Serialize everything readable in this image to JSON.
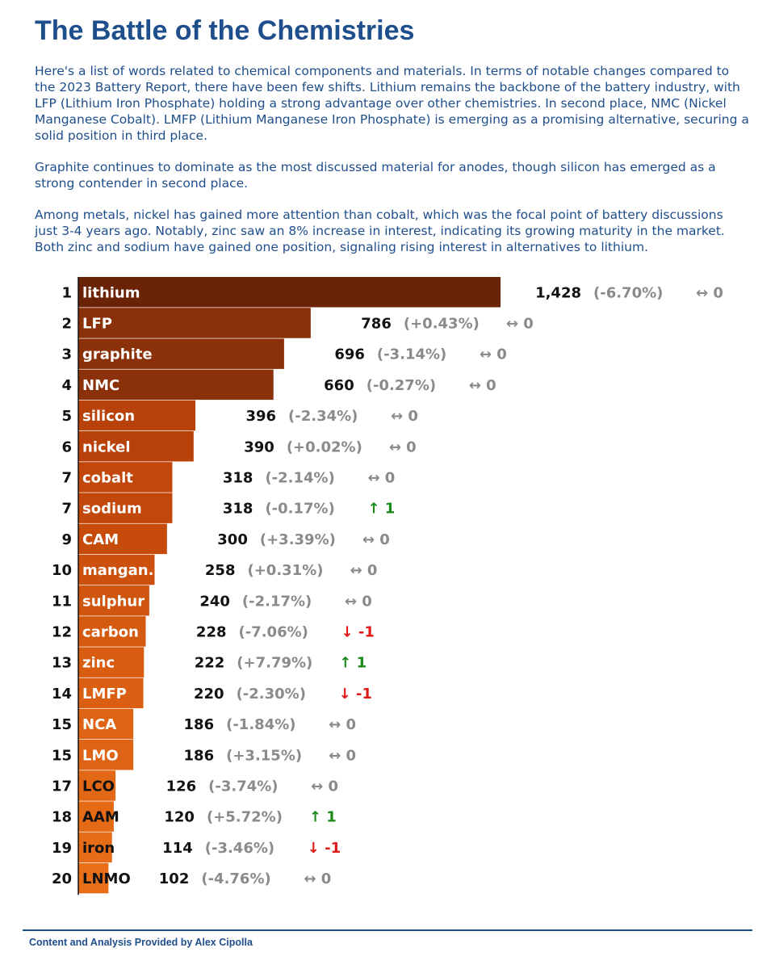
{
  "title": "The Battle of the Chemistries",
  "intro": {
    "p1": "Here's a list of words related to chemical components and materials. In terms of notable changes compared to the 2023 Battery Report, there have been few shifts. Lithium remains the backbone of the battery industry, with LFP (Lithium Iron Phosphate) holding a strong advantage over other chemistries. In second place, NMC (Nickel Manganese Cobalt). LMFP (Lithium Manganese Iron Phosphate) is emerging as a promising alternative, securing a solid position in third place.",
    "p2": "Graphite continues to dominate as the most discussed material for anodes, though silicon has emerged as a strong contender in second place.",
    "p3": "Among metals, nickel has gained more attention than cobalt, which was the focal point of battery discussions just 3-4 years ago. Notably, zinc saw an 8% increase in interest, indicating its growing maturity in the market. Both zinc and sodium have gained one position, signaling rising interest in alternatives to lithium."
  },
  "chart_data": {
    "type": "bar",
    "orientation": "horizontal",
    "title": "",
    "xlabel": "",
    "ylabel": "",
    "xlim": [
      0,
      1428
    ],
    "grid": false,
    "legend": "none",
    "rows": [
      {
        "rank": "1",
        "label": "lithium",
        "value": 1428,
        "value_text": "1,428",
        "pct": "(-6.70%)",
        "change": "↔ 0",
        "trend": "flat",
        "color": "#6b2308"
      },
      {
        "rank": "2",
        "label": "LFP",
        "value": 786,
        "value_text": "786",
        "pct": "(+0.43%)",
        "change": "↔ 0",
        "trend": "flat",
        "color": "#8b3109"
      },
      {
        "rank": "3",
        "label": "graphite",
        "value": 696,
        "value_text": "696",
        "pct": "(-3.14%)",
        "change": "↔ 0",
        "trend": "flat",
        "color": "#8b3109"
      },
      {
        "rank": "4",
        "label": "NMC",
        "value": 660,
        "value_text": "660",
        "pct": "(-0.27%)",
        "change": "↔ 0",
        "trend": "flat",
        "color": "#8b3109"
      },
      {
        "rank": "5",
        "label": "silicon",
        "value": 396,
        "value_text": "396",
        "pct": "(-2.34%)",
        "change": "↔ 0",
        "trend": "flat",
        "color": "#b8420a"
      },
      {
        "rank": "6",
        "label": "nickel",
        "value": 390,
        "value_text": "390",
        "pct": "(+0.02%)",
        "change": "↔ 0",
        "trend": "flat",
        "color": "#b8420a"
      },
      {
        "rank": "7",
        "label": "cobalt",
        "value": 318,
        "value_text": "318",
        "pct": "(-2.14%)",
        "change": "↔ 0",
        "trend": "flat",
        "color": "#c2470a"
      },
      {
        "rank": "7",
        "label": "sodium",
        "value": 318,
        "value_text": "318",
        "pct": "(-0.17%)",
        "change": "↑ 1",
        "trend": "up",
        "color": "#c2470a"
      },
      {
        "rank": "9",
        "label": "CAM",
        "value": 300,
        "value_text": "300",
        "pct": "(+3.39%)",
        "change": "↔ 0",
        "trend": "flat",
        "color": "#c74c0c"
      },
      {
        "rank": "10",
        "label": "mangan.",
        "value": 258,
        "value_text": "258",
        "pct": "(+0.31%)",
        "change": "↔ 0",
        "trend": "flat",
        "color": "#cc510e"
      },
      {
        "rank": "11",
        "label": "sulphur",
        "value": 240,
        "value_text": "240",
        "pct": "(-2.17%)",
        "change": "↔ 0",
        "trend": "flat",
        "color": "#d0550f"
      },
      {
        "rank": "12",
        "label": "carbon",
        "value": 228,
        "value_text": "228",
        "pct": "(-7.06%)",
        "change": "↓ -1",
        "trend": "down",
        "color": "#d45a10"
      },
      {
        "rank": "13",
        "label": "zinc",
        "value": 222,
        "value_text": "222",
        "pct": "(+7.79%)",
        "change": "↑ 1",
        "trend": "up",
        "color": "#d85d11"
      },
      {
        "rank": "14",
        "label": "LMFP",
        "value": 220,
        "value_text": "220",
        "pct": "(-2.30%)",
        "change": "↓ -1",
        "trend": "down",
        "color": "#da5f12"
      },
      {
        "rank": "15",
        "label": "NCA",
        "value": 186,
        "value_text": "186",
        "pct": "(-1.84%)",
        "change": "↔ 0",
        "trend": "flat",
        "color": "#de6314"
      },
      {
        "rank": "15",
        "label": "LMO",
        "value": 186,
        "value_text": "186",
        "pct": "(+3.15%)",
        "change": "↔ 0",
        "trend": "flat",
        "color": "#de6314"
      },
      {
        "rank": "17",
        "label": "LCO",
        "value": 126,
        "value_text": "126",
        "pct": "(-3.74%)",
        "change": "↔ 0",
        "trend": "flat",
        "color": "#e26815"
      },
      {
        "rank": "18",
        "label": "AAM",
        "value": 120,
        "value_text": "120",
        "pct": "(+5.72%)",
        "change": "↑ 1",
        "trend": "up",
        "color": "#e46a16"
      },
      {
        "rank": "19",
        "label": "iron",
        "value": 114,
        "value_text": "114",
        "pct": "(-3.46%)",
        "change": "↓ -1",
        "trend": "down",
        "color": "#e66c17"
      },
      {
        "rank": "20",
        "label": "LNMO",
        "value": 102,
        "value_text": "102",
        "pct": "(-4.76%)",
        "change": "↔ 0",
        "trend": "flat",
        "color": "#e86e18"
      }
    ],
    "trend_colors": {
      "up": "#1a8a1a",
      "down": "#e01818",
      "flat": "#8a8a8a"
    },
    "label_colors": {
      "light": "#ffffff",
      "dark": "#111111"
    }
  },
  "footer": {
    "text": "Content and Analysis Provided by Alex Cipolla",
    "accent": "#1f4e8c"
  }
}
